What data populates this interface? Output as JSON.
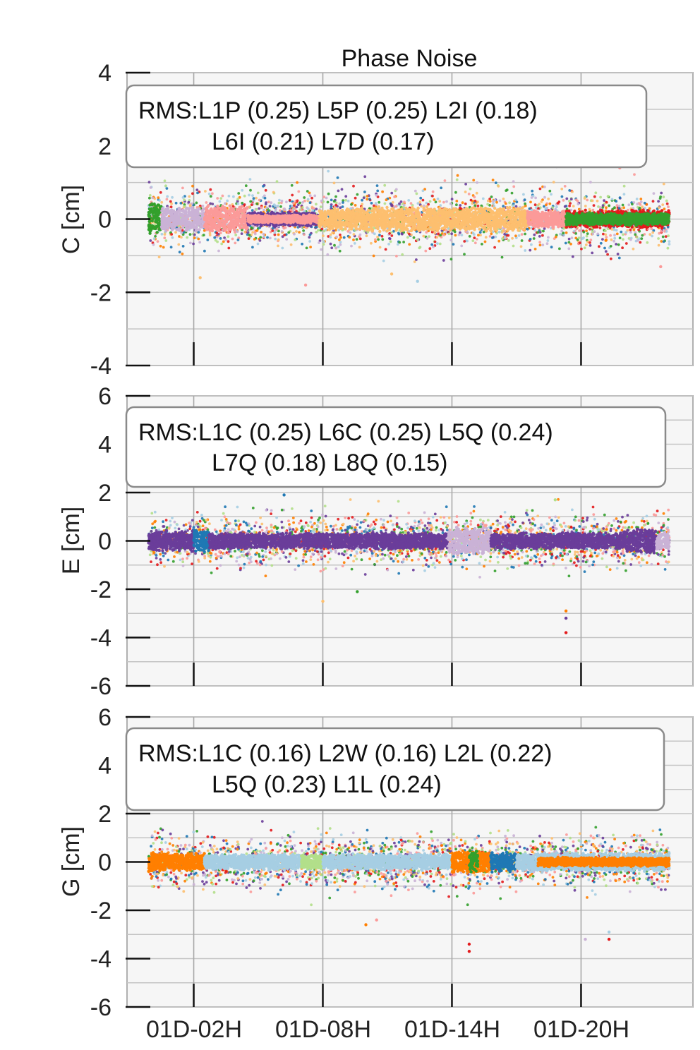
{
  "chart_data": {
    "type": "scatter",
    "title": "Phase Noise",
    "x_ticks": [
      "01D-02H",
      "01D-08H",
      "01D-14H",
      "01D-20H"
    ],
    "x_tick_hours": [
      2,
      8,
      14,
      20
    ],
    "x_range_hours": [
      -1.1,
      25.2
    ],
    "x_data_range_hours": [
      -0.1,
      24.1
    ],
    "grid": true,
    "background": "#f6f6f6",
    "panels": [
      {
        "id": "C",
        "ylabel": "C [cm]",
        "ylim": [
          -4,
          4
        ],
        "yticks": [
          -4,
          -2,
          0,
          2,
          4
        ],
        "rms_line1": "RMS:L1P (0.25) L5P (0.25) L2I (0.18)",
        "rms_line2": "L6I (0.21) L7D (0.17)",
        "series": [
          {
            "name": "L1P",
            "rms": 0.25
          },
          {
            "name": "L5P",
            "rms": 0.25
          },
          {
            "name": "L2I",
            "rms": 0.18
          },
          {
            "name": "L6I",
            "rms": 0.21
          },
          {
            "name": "L7D",
            "rms": 0.17
          }
        ],
        "dense_segments": [
          {
            "start": -0.1,
            "end": 0.5,
            "color": "#33a02c",
            "half_width": 0.45
          },
          {
            "start": 0.5,
            "end": 2.5,
            "color": "#cab2d6",
            "half_width": 0.35
          },
          {
            "start": 2.5,
            "end": 4.5,
            "color": "#fb9a99",
            "half_width": 0.4
          },
          {
            "start": 4.5,
            "end": 7.8,
            "color": "#6a3d9a",
            "half_width": 0.2
          },
          {
            "start": 4.5,
            "end": 7.8,
            "color": "#fb9a99",
            "half_width": 0.12
          },
          {
            "start": 7.8,
            "end": 9.5,
            "color": "#fdbf6f",
            "half_width": 0.3
          },
          {
            "start": 9.5,
            "end": 17.5,
            "color": "#fdbf6f",
            "half_width": 0.35
          },
          {
            "start": 17.5,
            "end": 19.3,
            "color": "#fb9a99",
            "half_width": 0.25
          },
          {
            "start": 19.3,
            "end": 24.1,
            "color": "#e31a1c",
            "half_width": 0.25
          },
          {
            "start": 19.3,
            "end": 24.1,
            "color": "#33a02c",
            "half_width": 0.18
          }
        ],
        "scatter_spread": 0.75,
        "outliers": [
          [
            2.3,
            -1.6
          ],
          [
            7.2,
            -1.8
          ],
          [
            12.4,
            -1.7
          ],
          [
            11.2,
            -1.5
          ],
          [
            23.7,
            -1.3
          ],
          [
            21.8,
            1.4
          ]
        ]
      },
      {
        "id": "E",
        "ylabel": "E [cm]",
        "ylim": [
          -6,
          6
        ],
        "yticks": [
          -6,
          -4,
          -2,
          0,
          2,
          4,
          6
        ],
        "rms_line1": "RMS:L1C (0.25) L6C (0.25) L5Q (0.24)",
        "rms_line2": "L7Q (0.18) L8Q (0.15)",
        "series": [
          {
            "name": "L1C",
            "rms": 0.25
          },
          {
            "name": "L6C",
            "rms": 0.25
          },
          {
            "name": "L5Q",
            "rms": 0.24
          },
          {
            "name": "L7Q",
            "rms": 0.18
          },
          {
            "name": "L8Q",
            "rms": 0.15
          }
        ],
        "dense_segments": [
          {
            "start": -0.1,
            "end": 2.0,
            "color": "#6a3d9a",
            "half_width": 0.45
          },
          {
            "start": 2.0,
            "end": 2.7,
            "color": "#1f78b4",
            "half_width": 0.5
          },
          {
            "start": 2.7,
            "end": 13.8,
            "color": "#6a3d9a",
            "half_width": 0.35
          },
          {
            "start": 13.8,
            "end": 15.8,
            "color": "#cab2d6",
            "half_width": 0.6
          },
          {
            "start": 15.8,
            "end": 22.0,
            "color": "#6a3d9a",
            "half_width": 0.35
          },
          {
            "start": 22.0,
            "end": 23.5,
            "color": "#6a3d9a",
            "half_width": 0.55
          },
          {
            "start": 23.5,
            "end": 24.1,
            "color": "#cab2d6",
            "half_width": 0.4
          }
        ],
        "scatter_spread": 1.0,
        "outliers": [
          [
            19.3,
            -3.8
          ],
          [
            19.3,
            -3.2
          ],
          [
            19.3,
            -2.9
          ],
          [
            8.0,
            -2.5
          ],
          [
            9.6,
            -2.1
          ],
          [
            18.8,
            1.7
          ],
          [
            6.2,
            1.9
          ]
        ]
      },
      {
        "id": "G",
        "ylabel": "G [cm]",
        "ylim": [
          -6,
          6
        ],
        "yticks": [
          -6,
          -4,
          -2,
          0,
          2,
          4,
          6
        ],
        "rms_line1": "RMS:L1C (0.16) L2W (0.16) L2L (0.22)",
        "rms_line2": "L5Q (0.23) L1L (0.24)",
        "series": [
          {
            "name": "L1C",
            "rms": 0.16
          },
          {
            "name": "L2W",
            "rms": 0.16
          },
          {
            "name": "L2L",
            "rms": 0.22
          },
          {
            "name": "L5Q",
            "rms": 0.23
          },
          {
            "name": "L1L",
            "rms": 0.24
          }
        ],
        "dense_segments": [
          {
            "start": -0.1,
            "end": 2.5,
            "color": "#ff7f00",
            "half_width": 0.4
          },
          {
            "start": 2.5,
            "end": 7.0,
            "color": "#a6cee3",
            "half_width": 0.35
          },
          {
            "start": 7.0,
            "end": 8.0,
            "color": "#b2df8a",
            "half_width": 0.35
          },
          {
            "start": 8.0,
            "end": 14.0,
            "color": "#a6cee3",
            "half_width": 0.35
          },
          {
            "start": 14.0,
            "end": 15.8,
            "color": "#ff7f00",
            "half_width": 0.5
          },
          {
            "start": 14.8,
            "end": 15.2,
            "color": "#33a02c",
            "half_width": 0.5
          },
          {
            "start": 15.8,
            "end": 17.0,
            "color": "#1f78b4",
            "half_width": 0.45
          },
          {
            "start": 17.0,
            "end": 24.1,
            "color": "#a6cee3",
            "half_width": 0.4
          },
          {
            "start": 18.0,
            "end": 24.1,
            "color": "#ff7f00",
            "half_width": 0.2
          }
        ],
        "scatter_spread": 1.0,
        "outliers": [
          [
            14.8,
            -3.7
          ],
          [
            14.8,
            -3.4
          ],
          [
            21.3,
            -3.2
          ],
          [
            21.3,
            -2.9
          ],
          [
            20.2,
            -3.2
          ],
          [
            10.5,
            -2.4
          ],
          [
            10.0,
            -2.6
          ]
        ]
      }
    ],
    "colors": [
      "#a6cee3",
      "#1f78b4",
      "#b2df8a",
      "#33a02c",
      "#fb9a99",
      "#e31a1c",
      "#fdbf6f",
      "#ff7f00",
      "#cab2d6",
      "#6a3d9a"
    ]
  }
}
